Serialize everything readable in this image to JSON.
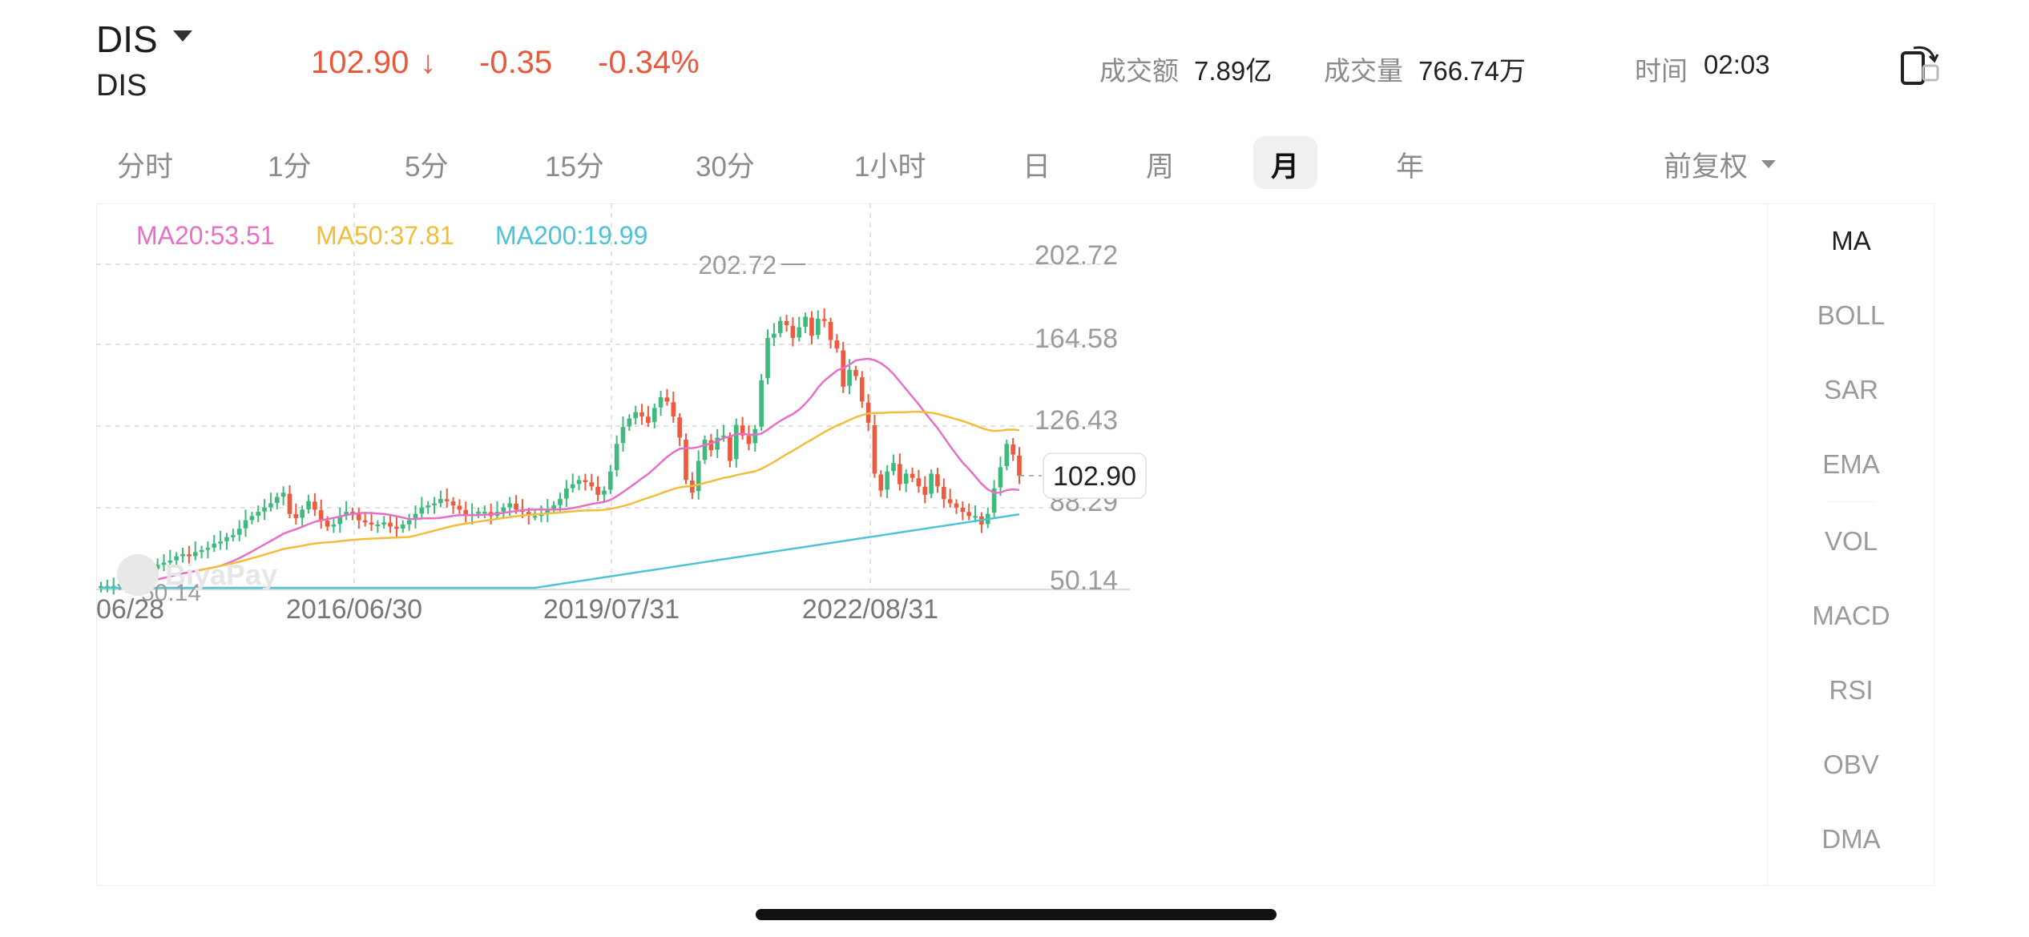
{
  "header": {
    "ticker": "DIS",
    "ticker_sub": "DIS",
    "price": "102.90",
    "arrow": "↓",
    "change": "-0.35",
    "change_pct": "-0.34%",
    "turnover_label": "成交额",
    "turnover_value": "7.89亿",
    "volume_label": "成交量",
    "volume_value": "766.74万",
    "time_label": "时间",
    "time_value": "02:03",
    "down_color": "#e8593c"
  },
  "tabs": [
    "分时",
    "1分",
    "5分",
    "15分",
    "30分",
    "1小时",
    "日",
    "周",
    "月",
    "年"
  ],
  "active_tab": "月",
  "adjust_label": "前复权",
  "indicators": [
    "MA",
    "BOLL",
    "SAR",
    "EMA",
    "VOL",
    "MACD",
    "RSI",
    "OBV",
    "DMA"
  ],
  "active_indicator": "MA",
  "ma_legend": {
    "ma20": "MA20:53.51",
    "ma50": "MA50:37.81",
    "ma200": "MA200:19.99"
  },
  "chart_data": {
    "type": "candlestick",
    "y_ticks": [
      "202.72",
      "164.58",
      "126.43",
      "88.29",
      "50.14"
    ],
    "x_ticks": [
      "06/28",
      "2016/06/30",
      "2019/07/31",
      "2022/08/31"
    ],
    "high_label": "202.72",
    "low_label": "50.14",
    "last_price_label": "102.90",
    "watermark": "BiyaPay",
    "colors": {
      "up": "#3fba7c",
      "down": "#ee5a3d",
      "ma20": "#e86fc6",
      "ma50": "#f3bd3c",
      "ma200": "#4cc4d6"
    },
    "series_close": [
      51,
      51,
      51,
      52,
      51,
      53,
      55,
      57,
      59,
      61,
      62,
      63,
      65,
      66,
      65,
      67,
      68,
      69,
      71,
      72,
      74,
      75,
      78,
      82,
      84,
      86,
      88,
      90,
      93,
      95,
      85,
      83,
      87,
      91,
      87,
      82,
      79,
      80,
      84,
      86,
      85,
      82,
      81,
      80,
      80,
      81,
      79,
      78,
      80,
      82,
      85,
      88,
      89,
      90,
      92,
      91,
      89,
      87,
      84,
      85,
      86,
      86,
      84,
      86,
      88,
      90,
      87,
      86,
      84,
      84,
      85,
      87,
      89,
      92,
      97,
      99,
      101,
      100,
      98,
      94,
      96,
      105,
      118,
      126,
      130,
      133,
      131,
      128,
      135,
      140,
      138,
      131,
      121,
      101,
      95,
      110,
      120,
      115,
      121,
      122,
      110,
      127,
      122,
      118,
      125,
      148,
      168,
      170,
      176,
      174,
      168,
      173,
      178,
      169,
      177,
      176,
      167,
      163,
      145,
      153,
      150,
      138,
      128,
      104,
      96,
      105,
      109,
      99,
      104,
      102,
      98,
      94,
      104,
      98,
      92,
      90,
      88,
      86,
      84,
      84,
      80,
      85,
      97,
      107,
      118,
      113,
      103
    ]
  }
}
